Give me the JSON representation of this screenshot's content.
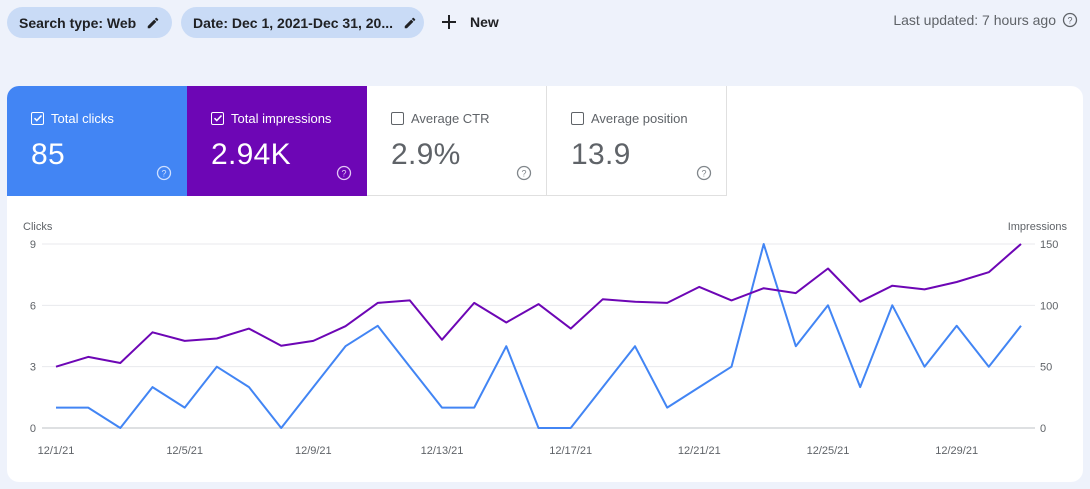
{
  "toolbar": {
    "search_type_chip": "Search type: Web",
    "date_chip": "Date: Dec 1, 2021-Dec 31, 20...",
    "new_label": "New",
    "last_updated": "Last updated: 7 hours ago"
  },
  "metrics": [
    {
      "label": "Total clicks",
      "value": "85",
      "checked": true,
      "color": "#4285f4"
    },
    {
      "label": "Total impressions",
      "value": "2.94K",
      "checked": true,
      "color": "#6d06b5"
    },
    {
      "label": "Average CTR",
      "value": "2.9%",
      "checked": false
    },
    {
      "label": "Average position",
      "value": "13.9",
      "checked": false
    }
  ],
  "chart_data": {
    "type": "line",
    "ylabel_left": "Clicks",
    "ylabel_right": "Impressions",
    "ylim_left": [
      0,
      9
    ],
    "ylim_right": [
      0,
      150
    ],
    "yticks_left": [
      "0",
      "3",
      "6",
      "9"
    ],
    "yticks_right": [
      "0",
      "50",
      "100",
      "150"
    ],
    "xtick_labels": [
      "12/1/21",
      "12/5/21",
      "12/9/21",
      "12/13/21",
      "12/17/21",
      "12/21/21",
      "12/25/21",
      "12/29/21"
    ],
    "x": [
      "12/1/21",
      "12/2/21",
      "12/3/21",
      "12/4/21",
      "12/5/21",
      "12/6/21",
      "12/7/21",
      "12/8/21",
      "12/9/21",
      "12/10/21",
      "12/11/21",
      "12/12/21",
      "12/13/21",
      "12/14/21",
      "12/15/21",
      "12/16/21",
      "12/17/21",
      "12/18/21",
      "12/19/21",
      "12/20/21",
      "12/21/21",
      "12/22/21",
      "12/23/21",
      "12/24/21",
      "12/25/21",
      "12/26/21",
      "12/27/21",
      "12/28/21",
      "12/29/21",
      "12/30/21",
      "12/31/21"
    ],
    "series": [
      {
        "name": "Clicks",
        "axis": "left",
        "color": "#4285f4",
        "values": [
          1,
          1,
          0,
          2,
          1,
          3,
          2,
          0,
          2,
          4,
          5,
          3,
          1,
          1,
          4,
          0,
          0,
          2,
          4,
          1,
          2,
          3,
          9,
          4,
          6,
          2,
          6,
          3,
          5,
          3,
          5
        ]
      },
      {
        "name": "Impressions",
        "axis": "right",
        "color": "#6d06b5",
        "values": [
          50,
          58,
          53,
          78,
          71,
          73,
          81,
          67,
          71,
          83,
          102,
          104,
          72,
          102,
          86,
          101,
          81,
          105,
          103,
          102,
          115,
          104,
          114,
          110,
          130,
          103,
          116,
          113,
          119,
          127,
          150
        ]
      }
    ],
    "grid": true
  }
}
